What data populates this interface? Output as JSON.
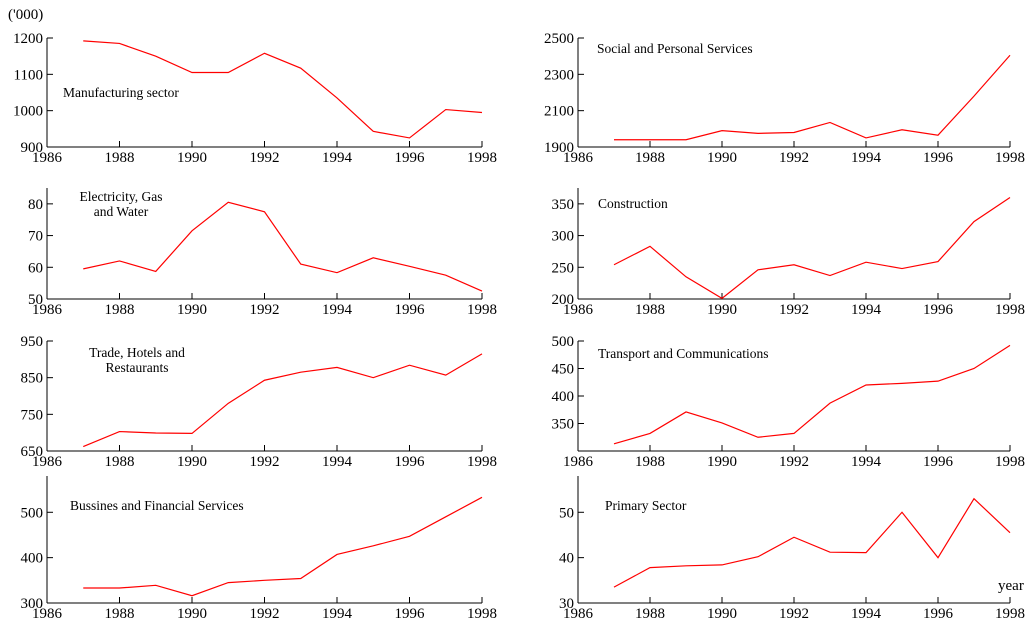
{
  "chart_data": [
    {
      "type": "line",
      "title": [
        "Manufacturing sector"
      ],
      "y_label": "('000)",
      "color": "#ff0000",
      "x": [
        1987,
        1988,
        1989,
        1990,
        1991,
        1992,
        1993,
        1994,
        1995,
        1996,
        1997,
        1998
      ],
      "values": [
        1192,
        1185,
        1150,
        1105,
        1105,
        1158,
        1117,
        1035,
        943,
        925,
        1003,
        995
      ],
      "xlim": [
        1986,
        1998
      ],
      "xticks": [
        1986,
        1988,
        1990,
        1992,
        1994,
        1996,
        1998
      ],
      "ylim": [
        900,
        1200
      ],
      "yticks": [
        900,
        1000,
        1100,
        1200
      ]
    },
    {
      "type": "line",
      "title": [
        "Social and Personal Services"
      ],
      "color": "#ff0000",
      "x": [
        1987,
        1988,
        1989,
        1990,
        1991,
        1992,
        1993,
        1994,
        1995,
        1996,
        1997,
        1998
      ],
      "values": [
        1940,
        1940,
        1940,
        1990,
        1975,
        1980,
        2035,
        1950,
        1995,
        1965,
        2180,
        2405
      ],
      "xlim": [
        1986,
        1998
      ],
      "xticks": [
        1986,
        1988,
        1990,
        1992,
        1994,
        1996,
        1998
      ],
      "ylim": [
        1900,
        2500
      ],
      "yticks": [
        1900,
        2100,
        2300,
        2500
      ]
    },
    {
      "type": "line",
      "title": [
        "Electricity, Gas",
        "and Water"
      ],
      "color": "#ff0000",
      "x": [
        1987,
        1988,
        1989,
        1990,
        1991,
        1992,
        1993,
        1994,
        1995,
        1996,
        1997,
        1998
      ],
      "values": [
        59.5,
        62,
        58.7,
        71.5,
        80.5,
        77.5,
        61,
        58.3,
        63,
        60.3,
        57.5,
        52.5
      ],
      "xlim": [
        1986,
        1998
      ],
      "xticks": [
        1986,
        1988,
        1990,
        1992,
        1994,
        1996,
        1998
      ],
      "ylim": [
        50,
        85
      ],
      "yticks": [
        50,
        60,
        70,
        80
      ]
    },
    {
      "type": "line",
      "title": [
        "Construction"
      ],
      "color": "#ff0000",
      "x": [
        1987,
        1988,
        1989,
        1990,
        1991,
        1992,
        1993,
        1994,
        1995,
        1996,
        1997,
        1998
      ],
      "values": [
        254,
        283,
        235,
        201,
        246,
        254,
        237,
        258,
        248,
        259,
        322,
        360
      ],
      "xlim": [
        1986,
        1998
      ],
      "xticks": [
        1986,
        1988,
        1990,
        1992,
        1994,
        1996,
        1998
      ],
      "ylim": [
        200,
        375
      ],
      "yticks": [
        200,
        250,
        300,
        350
      ]
    },
    {
      "type": "line",
      "title": [
        "Trade, Hotels and",
        "Restaurants"
      ],
      "color": "#ff0000",
      "x": [
        1987,
        1988,
        1989,
        1990,
        1991,
        1992,
        1993,
        1994,
        1995,
        1996,
        1997,
        1998
      ],
      "values": [
        662,
        703,
        699,
        698,
        780,
        843,
        865,
        878,
        850,
        884,
        857,
        915
      ],
      "xlim": [
        1986,
        1998
      ],
      "xticks": [
        1986,
        1988,
        1990,
        1992,
        1994,
        1996,
        1998
      ],
      "ylim": [
        650,
        950
      ],
      "yticks": [
        650,
        750,
        850,
        950
      ]
    },
    {
      "type": "line",
      "title": [
        "Transport and Communications"
      ],
      "color": "#ff0000",
      "x": [
        1987,
        1988,
        1989,
        1990,
        1991,
        1992,
        1993,
        1994,
        1995,
        1996,
        1997,
        1998
      ],
      "values": [
        313,
        332,
        371,
        351,
        325,
        332,
        387,
        420,
        423,
        427,
        450,
        492
      ],
      "xlim": [
        1986,
        1998
      ],
      "xticks": [
        1986,
        1988,
        1990,
        1992,
        1994,
        1996,
        1998
      ],
      "ylim": [
        300,
        500
      ],
      "yticks": [
        350,
        400,
        450,
        500
      ]
    },
    {
      "type": "line",
      "title": [
        "Bussines and Financial Services"
      ],
      "color": "#ff0000",
      "x": [
        1987,
        1988,
        1989,
        1990,
        1991,
        1992,
        1993,
        1994,
        1995,
        1996,
        1997,
        1998
      ],
      "values": [
        333,
        333,
        339,
        316,
        345,
        350,
        354,
        407,
        426,
        447,
        490,
        533
      ],
      "xlim": [
        1986,
        1998
      ],
      "xticks": [
        1986,
        1988,
        1990,
        1992,
        1994,
        1996,
        1998
      ],
      "ylim": [
        300,
        580
      ],
      "yticks": [
        300,
        400,
        500
      ]
    },
    {
      "type": "line",
      "title": [
        "Primary Sector"
      ],
      "x_label": "year",
      "color": "#ff0000",
      "x": [
        1987,
        1988,
        1989,
        1990,
        1991,
        1992,
        1993,
        1994,
        1995,
        1996,
        1997,
        1998
      ],
      "values": [
        33.5,
        37.8,
        38.2,
        38.4,
        40.2,
        44.5,
        41.2,
        41.1,
        50,
        40,
        53,
        45.5
      ],
      "xlim": [
        1986,
        1998
      ],
      "xticks": [
        1986,
        1988,
        1990,
        1992,
        1994,
        1996,
        1998
      ],
      "ylim": [
        30,
        58
      ],
      "yticks": [
        30,
        40,
        50
      ]
    }
  ]
}
